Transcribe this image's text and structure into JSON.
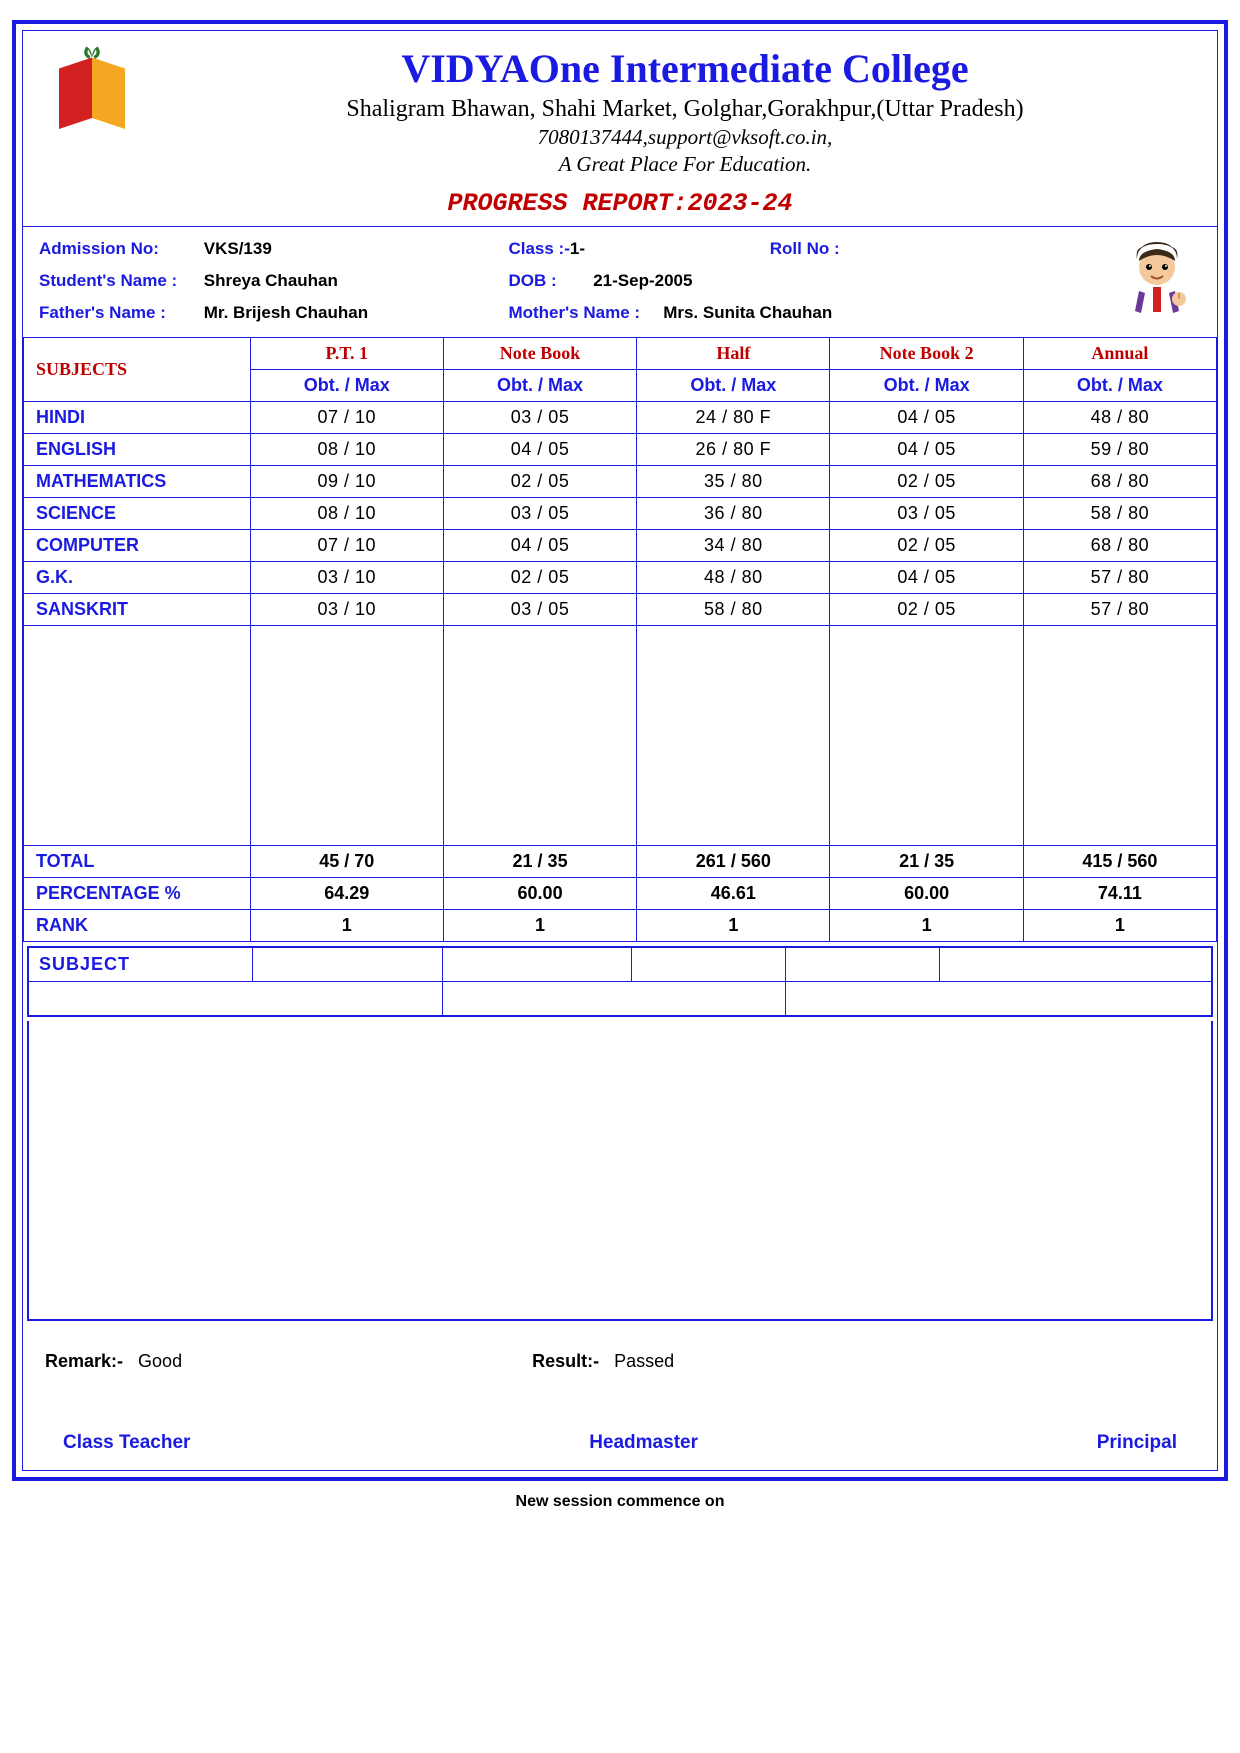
{
  "header": {
    "college_name": "VIDYAOne Intermediate College",
    "address": "Shaligram Bhawan, Shahi Market, Golghar,Gorakhpur,(Uttar Pradesh)",
    "contact": "7080137444,support@vksoft.co.in,",
    "tagline": "A Great Place For Education.",
    "report_title": "PROGRESS REPORT:2023-24"
  },
  "student": {
    "admission_label": "Admission No:",
    "admission_no": "VKS/139",
    "class_label": "Class  :-",
    "class": "1-",
    "roll_label": "Roll No :",
    "roll": "",
    "name_label": "Student's Name  :",
    "name": "Shreya Chauhan",
    "dob_label": "DOB   :",
    "dob": "21-Sep-2005",
    "father_label": "Father's Name   :",
    "father": "Mr. Brijesh Chauhan",
    "mother_label": "Mother's Name  :",
    "mother": "Mrs. Sunita Chauhan"
  },
  "table": {
    "subjects_label": "SUBJECTS",
    "obt_label": "Obt. / Max",
    "exams": [
      "P.T. 1",
      "Note Book",
      "Half",
      "Note Book 2",
      "Annual"
    ],
    "subjects": [
      {
        "name": "HINDI",
        "marks": [
          "07 / 10",
          "03 / 05",
          "24 / 80  F",
          "04 / 05",
          "48 / 80"
        ]
      },
      {
        "name": "ENGLISH",
        "marks": [
          "08 / 10",
          "04 / 05",
          "26 / 80  F",
          "04 / 05",
          "59 / 80"
        ]
      },
      {
        "name": "MATHEMATICS",
        "marks": [
          "09 / 10",
          "02 / 05",
          "35 / 80",
          "02 / 05",
          "68 / 80"
        ]
      },
      {
        "name": "SCIENCE",
        "marks": [
          "08 / 10",
          "03 / 05",
          "36 / 80",
          "03 / 05",
          "58 / 80"
        ]
      },
      {
        "name": "COMPUTER",
        "marks": [
          "07 / 10",
          "04 / 05",
          "34 / 80",
          "02 / 05",
          "68 / 80"
        ]
      },
      {
        "name": "G.K.",
        "marks": [
          "03 / 10",
          "02 / 05",
          "48 / 80",
          "04 / 05",
          "57 / 80"
        ]
      },
      {
        "name": "SANSKRIT",
        "marks": [
          "03 / 10",
          "03 / 05",
          "58 / 80",
          "02 / 05",
          "57 / 80"
        ]
      }
    ],
    "summary": [
      {
        "label": "TOTAL",
        "values": [
          "45 / 70",
          "21 / 35",
          "261 / 560",
          "21 / 35",
          "415 / 560"
        ]
      },
      {
        "label": "PERCENTAGE %",
        "values": [
          "64.29",
          "60.00",
          "46.61",
          "60.00",
          "74.11"
        ]
      },
      {
        "label": "RANK",
        "values": [
          "1",
          "1",
          "1",
          "1",
          "1"
        ]
      }
    ]
  },
  "subject2_label": "SUBJECT",
  "remark": {
    "label": "Remark:-",
    "value": "Good"
  },
  "result": {
    "label": "Result:-",
    "value": "Passed"
  },
  "signatures": {
    "class_teacher": "Class Teacher",
    "headmaster": "Headmaster",
    "principal": "Principal"
  },
  "footer_note": "New session commence on",
  "colors": {
    "blue": "#1a1ae0",
    "red": "#c00000"
  }
}
